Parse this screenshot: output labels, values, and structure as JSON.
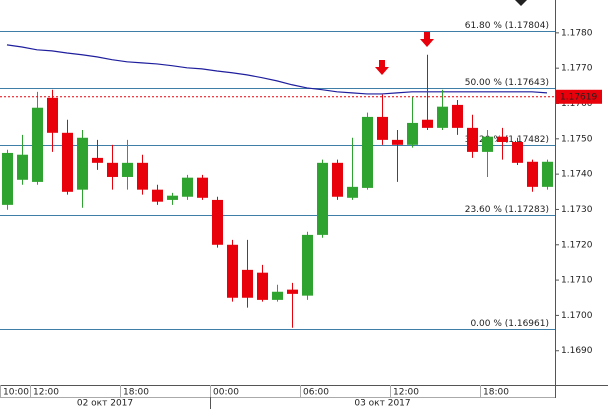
{
  "chart_data": {
    "type": "candlestick",
    "categories": [
      "10:00",
      null,
      "12:00",
      null,
      null,
      null,
      null,
      null,
      "18:00",
      null,
      null,
      null,
      null,
      null,
      "00:00",
      null,
      null,
      null,
      null,
      null,
      "06:00",
      null,
      null,
      null,
      null,
      null,
      "12:00",
      null,
      null,
      null,
      null,
      null,
      "18:00",
      null,
      null,
      null,
      null
    ],
    "dates": [
      "02 окт 2017",
      null,
      null,
      null,
      null,
      null,
      null,
      null,
      null,
      null,
      null,
      null,
      null,
      null,
      "03 окт 2017",
      null,
      null,
      null,
      null,
      null,
      null,
      null,
      null,
      null,
      null,
      null,
      null,
      null,
      null,
      null,
      null,
      null,
      null,
      null,
      null,
      null,
      null
    ],
    "open": [
      1.17313,
      1.17384,
      1.17378,
      1.17616,
      1.17517,
      1.17356,
      1.17446,
      1.17432,
      1.17392,
      1.17432,
      1.17356,
      1.17327,
      1.17336,
      1.1739,
      1.17327,
      1.172,
      1.17129,
      1.17121,
      1.17044,
      1.17073,
      1.17056,
      1.17228,
      1.17432,
      1.17333,
      1.17361,
      1.17562,
      1.17497,
      1.17483,
      1.17554,
      1.17531,
      1.17596,
      1.17531,
      1.17463,
      1.17506,
      1.17491,
      1.17435,
      1.17364
    ],
    "high": [
      1.17469,
      1.17511,
      1.17633,
      1.17639,
      1.17554,
      1.17525,
      1.17497,
      1.17483,
      1.17497,
      1.17455,
      1.1737,
      1.17347,
      1.17398,
      1.17398,
      1.17336,
      1.17214,
      1.17214,
      1.17143,
      1.17087,
      1.17092,
      1.17237,
      1.17441,
      1.17441,
      1.17503,
      1.17574,
      1.17625,
      1.17525,
      1.17619,
      1.17738,
      1.17639,
      1.1761,
      1.17568,
      1.17525,
      1.17531,
      1.17503,
      1.17441,
      1.17441
    ],
    "low": [
      1.17299,
      1.1737,
      1.1737,
      1.17463,
      1.17342,
      1.17305,
      1.17412,
      1.17356,
      1.17356,
      1.17342,
      1.17313,
      1.17313,
      1.17327,
      1.17327,
      1.17192,
      1.17039,
      1.17022,
      1.17039,
      1.17039,
      1.16965,
      1.17044,
      1.1722,
      1.17327,
      1.17327,
      1.17356,
      1.17483,
      1.17378,
      1.17475,
      1.17525,
      1.17525,
      1.17511,
      1.17446,
      1.17392,
      1.17441,
      1.17426,
      1.1735,
      1.17356
    ],
    "close": [
      1.1746,
      1.17455,
      1.17588,
      1.17517,
      1.1735,
      1.17503,
      1.17432,
      1.17392,
      1.17432,
      1.17356,
      1.17322,
      1.17339,
      1.1739,
      1.17333,
      1.172,
      1.1705,
      1.1705,
      1.17044,
      1.17067,
      1.17061,
      1.17228,
      1.17432,
      1.17336,
      1.17364,
      1.17562,
      1.17497,
      1.17483,
      1.17545,
      1.17531,
      1.17591,
      1.17531,
      1.17463,
      1.17506,
      1.17491,
      1.17432,
      1.17364,
      1.17435
    ],
    "up_color": "#2fa32f",
    "down_color": "#e8000b",
    "ma": {
      "color": "#1f1f9e",
      "values": [
        1.17766,
        1.1776,
        1.17752,
        1.17749,
        1.17743,
        1.17738,
        1.17732,
        1.17724,
        1.17718,
        1.17715,
        1.17712,
        1.17707,
        1.17701,
        1.17698,
        1.17692,
        1.17687,
        1.17681,
        1.17673,
        1.17664,
        1.17653,
        1.17644,
        1.17639,
        1.17633,
        1.1763,
        1.17627,
        1.17627,
        1.1763,
        1.17633,
        1.17633,
        1.17633,
        1.17633,
        1.17633,
        1.17633,
        1.17633,
        1.17633,
        1.17633,
        1.1763
      ]
    },
    "fib_color": "#3f7ea6",
    "fib_levels": [
      {
        "label": "61.80 % (1.17804)",
        "value": 1.17804
      },
      {
        "label": "50.00 % (1.17643)",
        "value": 1.17643
      },
      {
        "label": "38.20 % (1.17482)",
        "value": 1.17482
      },
      {
        "label": "23.60 % (1.17283)",
        "value": 1.17283
      },
      {
        "label": "0.00 % (1.16961)",
        "value": 1.16961
      }
    ],
    "current_price": 1.17619,
    "current_color": "#e8000b",
    "ylim": [
      1.16803,
      1.17893
    ],
    "yticks": [
      {
        "value": 1.178,
        "label": "1.1780"
      },
      {
        "value": 1.177,
        "label": "1.1770"
      },
      {
        "value": 1.176,
        "label": "1.1760"
      },
      {
        "value": 1.175,
        "label": "1.1750"
      },
      {
        "value": 1.174,
        "label": "1.1740"
      },
      {
        "value": 1.173,
        "label": "1.1730"
      },
      {
        "value": 1.172,
        "label": "1.1720"
      },
      {
        "value": 1.171,
        "label": "1.1710"
      },
      {
        "value": 1.17,
        "label": "1.1700"
      },
      {
        "value": 1.169,
        "label": "1.1690"
      }
    ]
  }
}
